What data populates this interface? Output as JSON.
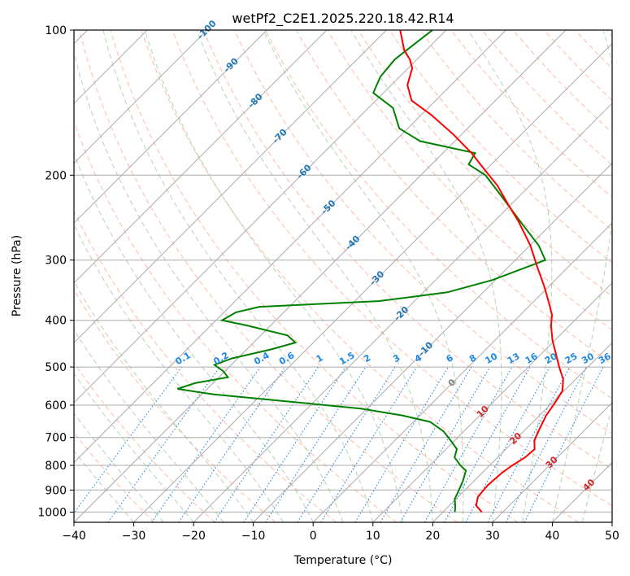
{
  "chart_data": {
    "type": "skew-t",
    "title": "wetPf2_C2E1.2025.220.18.42.R14",
    "xlabel": "Temperature (°C)",
    "ylabel": "Pressure (hPa)",
    "xlim": [
      -40,
      50
    ],
    "ylim": [
      1050,
      100
    ],
    "x_ticks": [
      "−40",
      "−30",
      "−20",
      "−10",
      "0",
      "10",
      "20",
      "30",
      "40",
      "50"
    ],
    "y_ticks": [
      {
        "p": 100,
        "label": "100"
      },
      {
        "p": 200,
        "label": "200"
      },
      {
        "p": 300,
        "label": "300"
      },
      {
        "p": 400,
        "label": "400"
      },
      {
        "p": 500,
        "label": "500"
      },
      {
        "p": 600,
        "label": "600"
      },
      {
        "p": 700,
        "label": "700"
      },
      {
        "p": 800,
        "label": "800"
      },
      {
        "p": 900,
        "label": "900"
      },
      {
        "p": 1000,
        "label": "1000"
      }
    ],
    "temperature_color": "#ff0000",
    "dewpoint_color": "#008000",
    "temperature": [
      {
        "p": 1000,
        "t": 26.5
      },
      {
        "p": 970,
        "t": 24.5
      },
      {
        "p": 930,
        "t": 23.3
      },
      {
        "p": 880,
        "t": 23.0
      },
      {
        "p": 830,
        "t": 23.3
      },
      {
        "p": 800,
        "t": 23.8
      },
      {
        "p": 770,
        "t": 24.6
      },
      {
        "p": 740,
        "t": 24.8
      },
      {
        "p": 710,
        "t": 23.3
      },
      {
        "p": 670,
        "t": 22.2
      },
      {
        "p": 630,
        "t": 21.1
      },
      {
        "p": 590,
        "t": 20.4
      },
      {
        "p": 560,
        "t": 19.7
      },
      {
        "p": 530,
        "t": 17.9
      },
      {
        "p": 500,
        "t": 15.2
      },
      {
        "p": 470,
        "t": 12.5
      },
      {
        "p": 440,
        "t": 9.6
      },
      {
        "p": 410,
        "t": 6.9
      },
      {
        "p": 390,
        "t": 5.3
      },
      {
        "p": 370,
        "t": 3.0
      },
      {
        "p": 340,
        "t": -0.8
      },
      {
        "p": 310,
        "t": -5.2
      },
      {
        "p": 280,
        "t": -9.9
      },
      {
        "p": 250,
        "t": -15.8
      },
      {
        "p": 230,
        "t": -20.5
      },
      {
        "p": 210,
        "t": -25.5
      },
      {
        "p": 195,
        "t": -30.2
      },
      {
        "p": 180,
        "t": -35.2
      },
      {
        "p": 165,
        "t": -41.2
      },
      {
        "p": 150,
        "t": -48.3
      },
      {
        "p": 140,
        "t": -54.0
      },
      {
        "p": 130,
        "t": -57.3
      },
      {
        "p": 120,
        "t": -59.3
      },
      {
        "p": 115,
        "t": -61.2
      },
      {
        "p": 110,
        "t": -63.7
      },
      {
        "p": 100,
        "t": -67.7
      }
    ],
    "dewpoint": [
      {
        "p": 1000,
        "t": 22.0
      },
      {
        "p": 970,
        "t": 21.0
      },
      {
        "p": 940,
        "t": 19.8
      },
      {
        "p": 900,
        "t": 19.0
      },
      {
        "p": 860,
        "t": 18.1
      },
      {
        "p": 820,
        "t": 16.9
      },
      {
        "p": 800,
        "t": 15.1
      },
      {
        "p": 770,
        "t": 12.8
      },
      {
        "p": 740,
        "t": 11.8
      },
      {
        "p": 710,
        "t": 9.3
      },
      {
        "p": 680,
        "t": 6.6
      },
      {
        "p": 650,
        "t": 2.8
      },
      {
        "p": 630,
        "t": -3.0
      },
      {
        "p": 610,
        "t": -11.0
      },
      {
        "p": 590,
        "t": -24.0
      },
      {
        "p": 570,
        "t": -38.0
      },
      {
        "p": 555,
        "t": -45.0
      },
      {
        "p": 540,
        "t": -43.0
      },
      {
        "p": 525,
        "t": -38.5
      },
      {
        "p": 510,
        "t": -40.3
      },
      {
        "p": 495,
        "t": -42.8
      },
      {
        "p": 480,
        "t": -41.0
      },
      {
        "p": 460,
        "t": -36.0
      },
      {
        "p": 445,
        "t": -33.0
      },
      {
        "p": 430,
        "t": -35.5
      },
      {
        "p": 410,
        "t": -44.0
      },
      {
        "p": 400,
        "t": -49.0
      },
      {
        "p": 385,
        "t": -48.0
      },
      {
        "p": 375,
        "t": -45.0
      },
      {
        "p": 365,
        "t": -26.0
      },
      {
        "p": 350,
        "t": -16.0
      },
      {
        "p": 330,
        "t": -10.5
      },
      {
        "p": 300,
        "t": -5.0
      },
      {
        "p": 280,
        "t": -8.5
      },
      {
        "p": 250,
        "t": -15.5
      },
      {
        "p": 220,
        "t": -23.3
      },
      {
        "p": 200,
        "t": -29.2
      },
      {
        "p": 190,
        "t": -33.8
      },
      {
        "p": 180,
        "t": -34.6
      },
      {
        "p": 170,
        "t": -45.8
      },
      {
        "p": 160,
        "t": -51.4
      },
      {
        "p": 145,
        "t": -55.9
      },
      {
        "p": 135,
        "t": -61.7
      },
      {
        "p": 125,
        "t": -63.2
      },
      {
        "p": 115,
        "t": -63.7
      },
      {
        "p": 105,
        "t": -62.8
      },
      {
        "p": 100,
        "t": -62.3
      }
    ],
    "isotherm_labels": [
      "-100",
      "-90",
      "-80",
      "-70",
      "-60",
      "-50",
      "-40",
      "-30",
      "-20",
      "-10",
      "0",
      "10",
      "20",
      "30",
      "40"
    ],
    "mixing_ratio_labels": [
      "0.1",
      "0.2",
      "0.4",
      "0.6",
      "1",
      "1.5",
      "2",
      "3",
      "4",
      "6",
      "8",
      "10",
      "13",
      "16",
      "20",
      "25",
      "30",
      "36"
    ]
  }
}
